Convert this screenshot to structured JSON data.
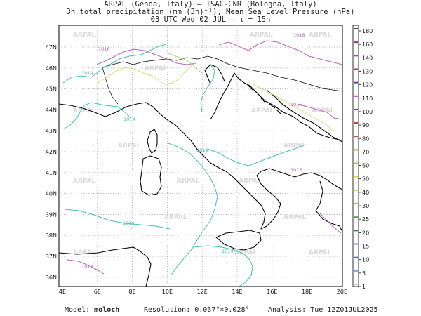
{
  "header": {
    "line1": "ARPAL (Genoa, Italy)  —  ISAC-CNR (Bologna, Italy)",
    "line2": "3h total precipitation (mm (3h)⁻¹), Mean Sea Level Pressure (hPa)",
    "line3": "03 UTC Wed 02 JUL  —  τ = 15h"
  },
  "map": {
    "lon_labels": [
      "4E",
      "6E",
      "8E",
      "10E",
      "12E",
      "14E",
      "16E",
      "18E",
      "20E"
    ],
    "lat_labels": [
      "47N",
      "46N",
      "45N",
      "44N",
      "43N",
      "42N",
      "41N",
      "40N",
      "39N",
      "38N",
      "37N",
      "36N"
    ],
    "watermark": "ARPAL",
    "isobar_labels": [
      "1014",
      "1016",
      "1014",
      "1014",
      "1014",
      "1014",
      "1013",
      "1016",
      "1016",
      "1016"
    ]
  },
  "colorbar": {
    "levels": [
      "180",
      "160",
      "140",
      "130",
      "120",
      "110",
      "100",
      "90",
      "80",
      "70",
      "60",
      "50",
      "40",
      "30",
      "25",
      "20",
      "15",
      "10",
      "5",
      "1"
    ],
    "colors": [
      "#6b2a6b",
      "#8a2e8a",
      "#a63aa6",
      "#8a3aa8",
      "#6a3aa8",
      "#c23c9a",
      "#a8268a",
      "#c83a3a",
      "#c85a3a",
      "#d07a3a",
      "#d8b43a",
      "#e0d84a",
      "#c8d84a",
      "#8ac84a",
      "#4aa84a",
      "#2a8a3a",
      "#6a8ad8",
      "#3a6ac8",
      "#6aa8e8",
      "#b8d8f0"
    ]
  },
  "footer": {
    "model_label": "Model:",
    "model_value": "moloch",
    "resolution": "Resolution: 0.037°×0.028°",
    "analysis": "Analysis: Tue 12Z01JUL2025"
  }
}
